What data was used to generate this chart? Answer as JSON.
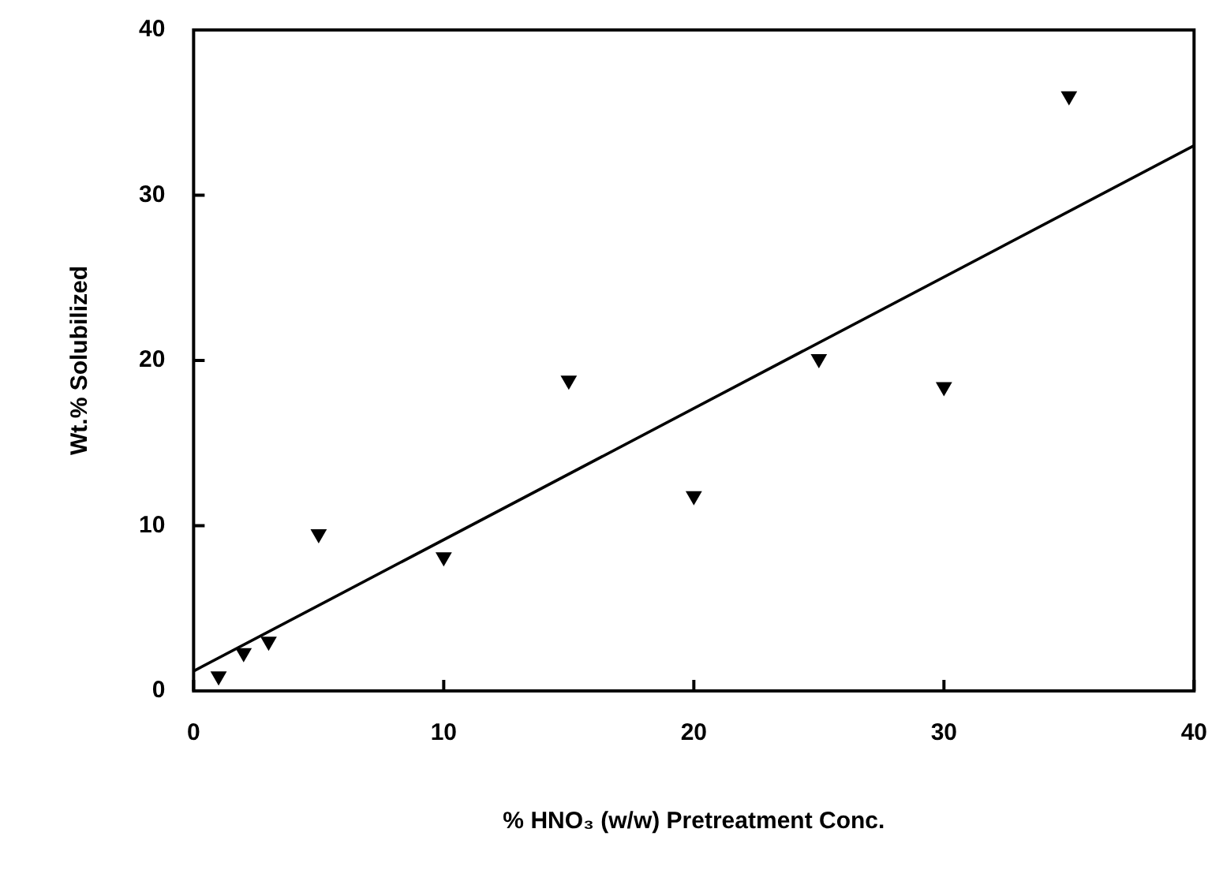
{
  "chart_data": {
    "type": "scatter",
    "xlabel": "% HNO₃ (w/w) Pretreatment Conc.",
    "ylabel": "Wt.% Solubilized",
    "xlim": [
      0,
      40
    ],
    "xticks": [
      0,
      10,
      20,
      30,
      40
    ],
    "ylim": [
      0,
      40
    ],
    "yticks": [
      0,
      10,
      20,
      30,
      40
    ],
    "series": [
      {
        "type": "scatter",
        "color": "#000000",
        "marker": "triangle",
        "x": [
          1,
          2,
          3,
          5,
          10,
          15,
          20,
          25,
          30,
          35
        ],
        "values": [
          0.9,
          2.3,
          3.0,
          9.5,
          8.1,
          18.8,
          11.8,
          20.1,
          18.4,
          36.0
        ]
      },
      {
        "type": "line",
        "color": "#000000",
        "marker": "none",
        "line_style": "solid",
        "x": [
          0,
          40
        ],
        "values": [
          1.2,
          33.0
        ]
      }
    ]
  }
}
